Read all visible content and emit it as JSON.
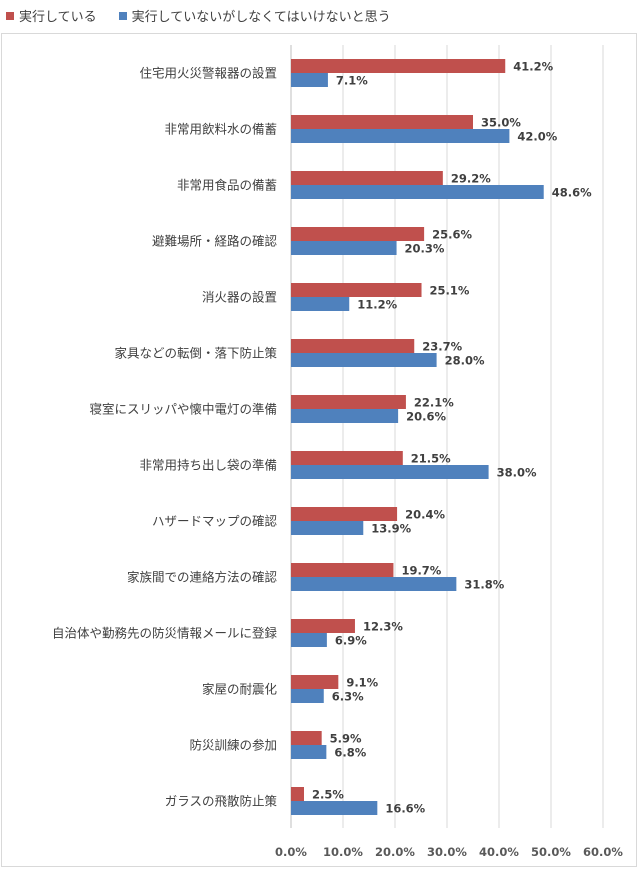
{
  "chart_data": {
    "type": "bar",
    "orientation": "horizontal",
    "categories": [
      "住宅用火災警報器の設置",
      "非常用飲料水の備蓄",
      "非常用食品の備蓄",
      "避難場所・経路の確認",
      "消火器の設置",
      "家具などの転倒・落下防止策",
      "寝室にスリッパや懐中電灯の準備",
      "非常用持ち出し袋の準備",
      "ハザードマップの確認",
      "家族間での連絡方法の確認",
      "自治体や勤務先の防災情報メールに登録",
      "家屋の耐震化",
      "防災訓練の参加",
      "ガラスの飛散防止策"
    ],
    "series": [
      {
        "name": "実行している",
        "color": "#c0504d",
        "values": [
          41.2,
          35.0,
          29.2,
          25.6,
          25.1,
          23.7,
          22.1,
          21.5,
          20.4,
          19.7,
          12.3,
          9.1,
          5.9,
          2.5
        ],
        "labels": [
          "41.2%",
          "35.0%",
          "29.2%",
          "25.6%",
          "25.1%",
          "23.7%",
          "22.1%",
          "21.5%",
          "20.4%",
          "19.7%",
          "12.3%",
          "9.1%",
          "5.9%",
          "2.5%"
        ]
      },
      {
        "name": "実行していないがしなくてはいけないと思う",
        "color": "#4f81bd",
        "values": [
          7.1,
          42.0,
          48.6,
          20.3,
          11.2,
          28.0,
          20.6,
          38.0,
          13.9,
          31.8,
          6.9,
          6.3,
          6.8,
          16.6
        ],
        "labels": [
          "7.1%",
          "42.0%",
          "48.6%",
          "20.3%",
          "11.2%",
          "28.0%",
          "20.6%",
          "38.0%",
          "13.9%",
          "31.8%",
          "6.9%",
          "6.3%",
          "6.8%",
          "16.6%"
        ]
      }
    ],
    "xlim": [
      0,
      60
    ],
    "xticks": [
      "0.0%",
      "10.0%",
      "20.0%",
      "30.0%",
      "40.0%",
      "50.0%",
      "60.0%"
    ],
    "grid": true,
    "legend_position": "top-left"
  }
}
